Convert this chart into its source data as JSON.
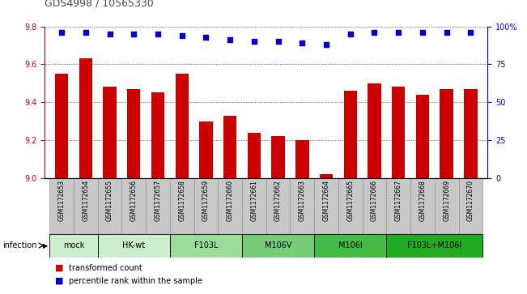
{
  "title": "GDS4998 / 10565330",
  "samples": [
    "GSM1172653",
    "GSM1172654",
    "GSM1172655",
    "GSM1172656",
    "GSM1172657",
    "GSM1172658",
    "GSM1172659",
    "GSM1172660",
    "GSM1172661",
    "GSM1172662",
    "GSM1172663",
    "GSM1172664",
    "GSM1172665",
    "GSM1172666",
    "GSM1172667",
    "GSM1172668",
    "GSM1172669",
    "GSM1172670"
  ],
  "bar_values": [
    9.55,
    9.63,
    9.48,
    9.47,
    9.45,
    9.55,
    9.3,
    9.33,
    9.24,
    9.22,
    9.2,
    9.02,
    9.46,
    9.5,
    9.48,
    9.44,
    9.47,
    9.47
  ],
  "percentile_values": [
    96,
    96,
    95,
    95,
    95,
    94,
    93,
    91,
    90,
    90,
    89,
    88,
    95,
    96,
    96,
    96,
    96,
    96
  ],
  "ylim_left": [
    9.0,
    9.8
  ],
  "ylim_right": [
    0,
    100
  ],
  "yticks_left": [
    9.0,
    9.2,
    9.4,
    9.6,
    9.8
  ],
  "yticks_right": [
    0,
    25,
    50,
    75,
    100
  ],
  "bar_color": "#cc0000",
  "dot_color": "#0000cc",
  "group_configs": [
    {
      "label": "mock",
      "start": 0,
      "end": 1,
      "color": "#cceecc"
    },
    {
      "label": "HK-wt",
      "start": 2,
      "end": 4,
      "color": "#cceecc"
    },
    {
      "label": "F103L",
      "start": 5,
      "end": 7,
      "color": "#99dd99"
    },
    {
      "label": "M106V",
      "start": 8,
      "end": 10,
      "color": "#77cc77"
    },
    {
      "label": "M106I",
      "start": 11,
      "end": 13,
      "color": "#44bb44"
    },
    {
      "label": "F103L+M106I",
      "start": 14,
      "end": 17,
      "color": "#22aa22"
    }
  ],
  "infection_label": "infection",
  "legend_items": [
    {
      "label": "transformed count",
      "color": "#cc0000"
    },
    {
      "label": "percentile rank within the sample",
      "color": "#0000cc"
    }
  ],
  "bg_color": "#ffffff",
  "left_tick_color": "#cc0000",
  "right_tick_color": "#0000cc",
  "sample_bg_color": "#c8c8c8",
  "title_fontsize": 9
}
